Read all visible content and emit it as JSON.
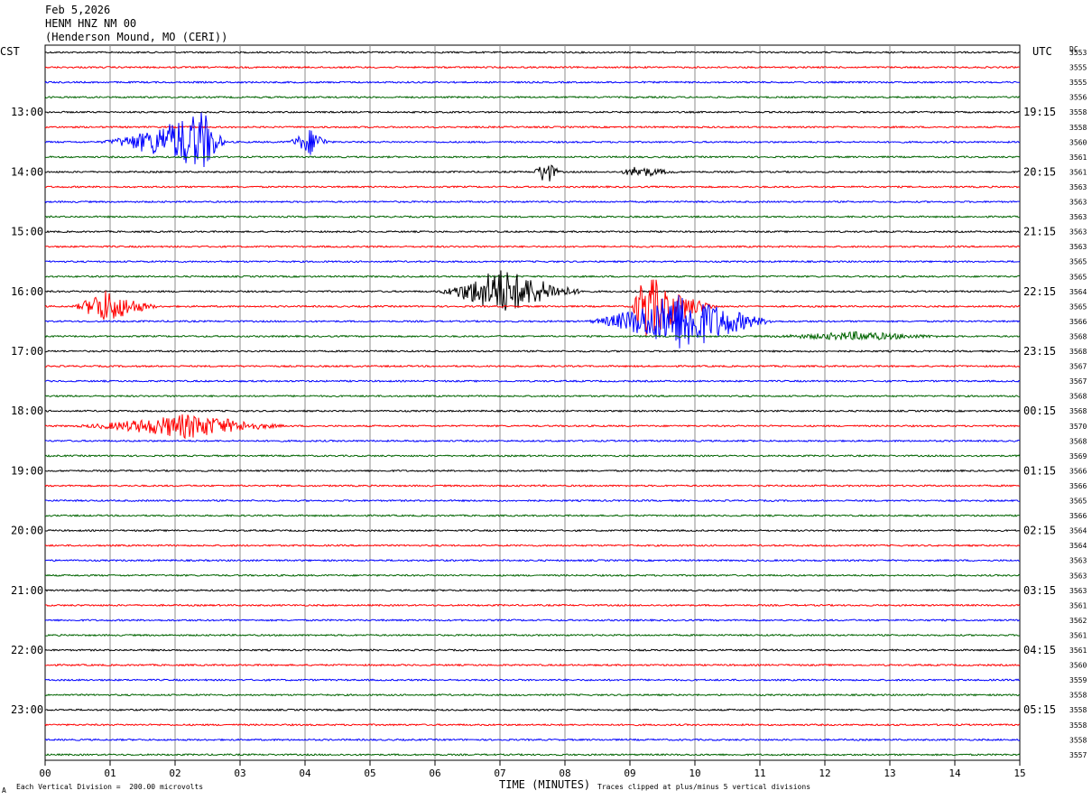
{
  "header": {
    "date": "Feb 5,2026",
    "station": "HENM HNZ NM 00",
    "location": "(Henderson Mound, MO (CERI))"
  },
  "left_timezone": "CST",
  "right_timezone": "UTC",
  "dc_label": "DC",
  "footer": {
    "xlabel": "TIME (MINUTES)",
    "scale_note": "Each Vertical Division =  200.00 microvolts",
    "clip_note": "Traces clipped at plus/minus 5 vertical divisions",
    "corner_mark": "A"
  },
  "chart_data": {
    "type": "line",
    "title": "",
    "xlabel": "TIME (MINUTES)",
    "ylabel": "",
    "xlim": [
      0,
      15
    ],
    "x_ticks": [
      "00",
      "01",
      "02",
      "03",
      "04",
      "05",
      "06",
      "07",
      "08",
      "09",
      "10",
      "11",
      "12",
      "13",
      "14",
      "15"
    ],
    "rows_per_hour": 4,
    "row_colors": [
      "#000000",
      "#ff0000",
      "#0000ff",
      "#006400"
    ],
    "left_hour_labels": [
      "13:00",
      "14:00",
      "15:00",
      "16:00",
      "17:00",
      "18:00",
      "19:00",
      "20:00",
      "21:00",
      "22:00",
      "23:00"
    ],
    "right_hour_labels": [
      "19:15",
      "20:15",
      "21:15",
      "22:15",
      "23:15",
      "00:15",
      "01:15",
      "02:15",
      "03:15",
      "04:15",
      "05:15"
    ],
    "dc_values": [
      "3553",
      "3555",
      "3555",
      "3556",
      "3558",
      "3558",
      "3560",
      "3561",
      "3561",
      "3563",
      "3563",
      "3563",
      "3563",
      "3563",
      "3565",
      "3565",
      "3564",
      "3565",
      "3566",
      "3568",
      "3568",
      "3567",
      "3567",
      "3568",
      "3568",
      "3570",
      "3568",
      "3569",
      "3566",
      "3566",
      "3565",
      "3566",
      "3564",
      "3564",
      "3563",
      "3563",
      "3563",
      "3561",
      "3562",
      "3561",
      "3561",
      "3560",
      "3559",
      "3558",
      "3558",
      "3558",
      "3558",
      "3557"
    ],
    "events": [
      {
        "row": 6,
        "start_min": 0.8,
        "end_min": 2.8,
        "peak_min": 2.45,
        "amplitude": 4.5
      },
      {
        "row": 6,
        "start_min": 3.7,
        "end_min": 4.4,
        "peak_min": 4.1,
        "amplitude": 2.0
      },
      {
        "row": 8,
        "start_min": 7.5,
        "end_min": 7.95,
        "peak_min": 7.7,
        "amplitude": 2.0
      },
      {
        "row": 8,
        "start_min": 8.8,
        "end_min": 9.8,
        "peak_min": 9.1,
        "amplitude": 0.8
      },
      {
        "row": 16,
        "start_min": 6.0,
        "end_min": 8.4,
        "peak_min": 7.0,
        "amplitude": 3.5
      },
      {
        "row": 17,
        "start_min": 0.4,
        "end_min": 1.8,
        "peak_min": 0.9,
        "amplitude": 2.5
      },
      {
        "row": 17,
        "start_min": 9.0,
        "end_min": 10.4,
        "peak_min": 9.2,
        "amplitude": 5.0
      },
      {
        "row": 18,
        "start_min": 8.3,
        "end_min": 11.3,
        "peak_min": 9.8,
        "amplitude": 4.5
      },
      {
        "row": 19,
        "start_min": 11.0,
        "end_min": 14.0,
        "peak_min": 12.5,
        "amplitude": 0.6
      },
      {
        "row": 25,
        "start_min": 0.4,
        "end_min": 3.8,
        "peak_min": 2.2,
        "amplitude": 1.8
      }
    ]
  }
}
